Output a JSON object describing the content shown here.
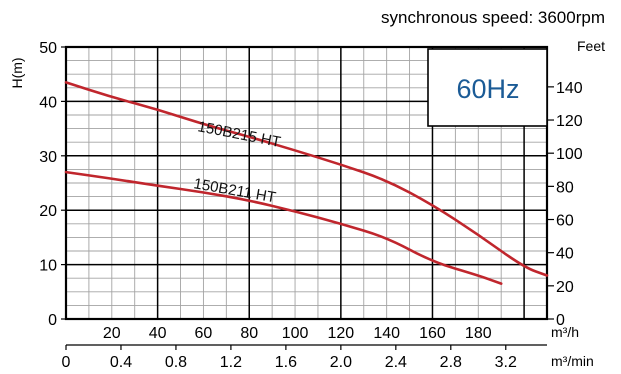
{
  "header": {
    "synchronous_speed": "synchronous speed: 3600rpm"
  },
  "badge": {
    "frequency": "60Hz"
  },
  "chart_data": {
    "type": "line",
    "title": "",
    "left_axis": {
      "label": "H(m)",
      "ticks": [
        0,
        10,
        20,
        30,
        40,
        50
      ],
      "range": [
        0,
        50
      ]
    },
    "right_axis": {
      "label": "Feet",
      "ticks": [
        0,
        20,
        40,
        60,
        80,
        100,
        120,
        140
      ]
    },
    "x_axis_flow_m3h": {
      "unit": "m³/h",
      "ticks": [
        20,
        40,
        60,
        80,
        100,
        120,
        140,
        160,
        180
      ]
    },
    "x_axis_flow_m3min": {
      "unit": "m³/min",
      "ticks": [
        "0",
        "0.4",
        "0.8",
        "1.2",
        "1.6",
        "2.0",
        "2.4",
        "2.8",
        "3.2"
      ]
    },
    "xlim_m3h": [
      0,
      210
    ],
    "grid": true,
    "series": [
      {
        "name": "150B215 HT",
        "color": "#c0262d",
        "x": [
          0,
          20,
          40,
          60,
          80,
          100,
          120,
          140,
          160,
          180,
          200,
          210
        ],
        "y": [
          43.5,
          40.8,
          38.5,
          35.8,
          33.5,
          31,
          28.4,
          25.5,
          21,
          15.5,
          9.5,
          8
        ]
      },
      {
        "name": "150B211 HT",
        "color": "#c0262d",
        "x": [
          0,
          20,
          40,
          60,
          80,
          100,
          120,
          140,
          160,
          180,
          190
        ],
        "y": [
          27,
          25.8,
          24.5,
          23.3,
          21.8,
          19.8,
          17.5,
          15,
          10.5,
          8,
          6.5
        ]
      }
    ],
    "labels": {
      "curve_a": "150B215 HT",
      "curve_b": "150B211 HT"
    }
  }
}
